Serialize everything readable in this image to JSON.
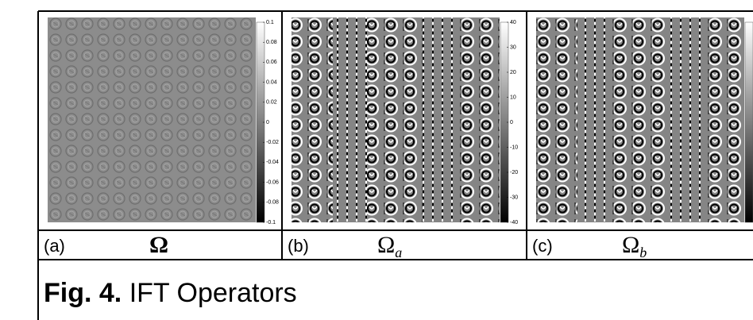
{
  "panels": [
    {
      "label": "(a)",
      "symbol": "Ω",
      "colorbar_ticks": [
        0.1,
        0.08,
        0.06,
        0.04,
        0.02,
        0,
        -0.02,
        -0.04,
        -0.06,
        -0.08,
        -0.1
      ]
    },
    {
      "label": "(b)",
      "symbol": "Ω",
      "subscript": "a",
      "colorbar_ticks": [
        40,
        30,
        20,
        10,
        0,
        -10,
        -20,
        -30,
        -40
      ]
    },
    {
      "label": "(c)",
      "symbol": "Ω",
      "subscript": "b"
    }
  ],
  "caption": {
    "number": "Fig. 4.",
    "text": "IFT Operators"
  }
}
